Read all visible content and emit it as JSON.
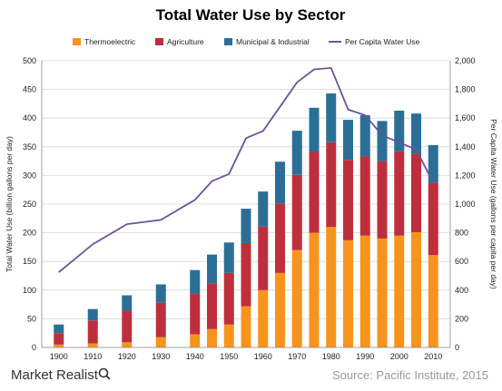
{
  "chart_data": {
    "type": "bar",
    "title": "Total Water Use by Sector",
    "ylabel": "Total Water Use (billion gallons per day)",
    "y2label": "Per Capita Water Use (gallons per capita per day)",
    "ylim": [
      0,
      500
    ],
    "y2lim": [
      0,
      2000
    ],
    "yticks": [
      "0",
      "50",
      "100",
      "150",
      "200",
      "250",
      "300",
      "350",
      "400",
      "450",
      "500"
    ],
    "y2ticks": [
      "0",
      "200",
      "400",
      "600",
      "800",
      "1,000",
      "1,200",
      "1,400",
      "1,600",
      "1,800",
      "2,000"
    ],
    "xticks": [
      "1900",
      "1910",
      "1920",
      "1930",
      "1940",
      "1950",
      "1960",
      "1970",
      "1980",
      "1990",
      "2000",
      "2010"
    ],
    "grid": true,
    "legend_position": "top",
    "categories": [
      1900,
      1910,
      1920,
      1930,
      1940,
      1945,
      1950,
      1955,
      1960,
      1965,
      1970,
      1975,
      1980,
      1985,
      1990,
      1995,
      2000,
      2005,
      2010
    ],
    "series": [
      {
        "name": "Thermoelectric",
        "type": "bar",
        "color": "#F7941D",
        "values": [
          5,
          7,
          9,
          18,
          23,
          32,
          40,
          72,
          100,
          130,
          170,
          200,
          210,
          187,
          195,
          190,
          195,
          201,
          161
        ]
      },
      {
        "name": "Agriculture",
        "type": "bar",
        "color": "#BE2F3D",
        "values": [
          20,
          40,
          55,
          60,
          71,
          80,
          90,
          110,
          111,
          121,
          131,
          141,
          148,
          140,
          138,
          135,
          147,
          137,
          126
        ]
      },
      {
        "name": "Municipal & Industrial",
        "type": "bar",
        "color": "#2B6F97",
        "values": [
          15,
          20,
          27,
          32,
          41,
          50,
          53,
          60,
          61,
          73,
          77,
          77,
          85,
          70,
          72,
          70,
          71,
          70,
          66
        ]
      },
      {
        "name": "Per Capita Water Use",
        "type": "line",
        "axis": "right",
        "color": "#6A5499",
        "values": [
          525,
          720,
          860,
          890,
          1030,
          1160,
          1210,
          1460,
          1510,
          1680,
          1850,
          1940,
          1950,
          1660,
          1620,
          1480,
          1430,
          1380,
          1150
        ]
      }
    ]
  },
  "source": "Source: Pacific Institute, 2015",
  "brand": "Market Realist",
  "colors": {
    "grid": "#D6D6D6",
    "axis": "#888888"
  }
}
